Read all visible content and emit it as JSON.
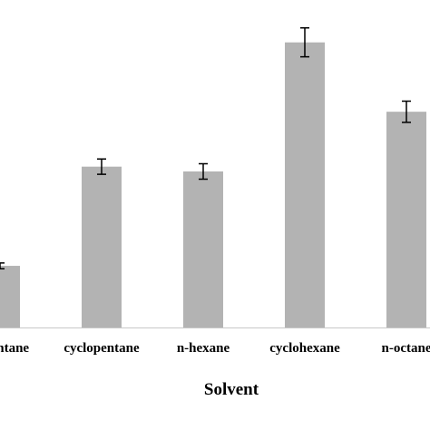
{
  "chart_data": {
    "type": "bar",
    "categories": [
      "n-pentane",
      "cyclopentane",
      "n-hexane",
      "cyclohexane",
      "n-octane"
    ],
    "values": [
      64,
      167,
      162,
      296,
      224
    ],
    "errors": [
      3,
      8,
      8,
      15,
      11
    ],
    "ylim": [
      0,
      340
    ],
    "xlabel": "Solvent",
    "ylabel": "",
    "title": "",
    "grid": false,
    "bar_color": "#b3b3b3"
  }
}
